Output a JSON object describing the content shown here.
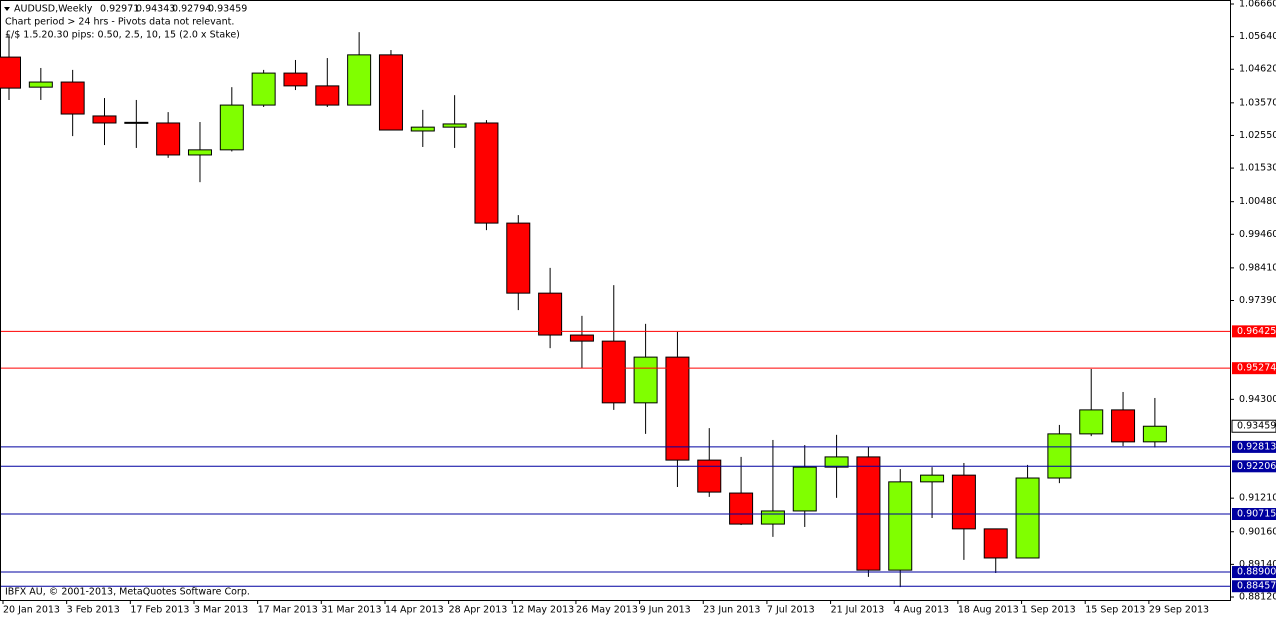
{
  "chart_data": {
    "type": "candlestick",
    "title": "AUDUSD,Weekly",
    "subtitle": [
      "Chart period > 24 hrs - Pivots data not relevant.",
      "£/$ 1.5.20.30 pips: 0.50, 2.5, 10, 15 (2.0 x Stake)"
    ],
    "footer": "IBFX AU, © 2001-2013, MetaQuotes Software Corp.",
    "categories": [
      "20 Jan 2013",
      null,
      "3 Feb 2013",
      null,
      "17 Feb 2013",
      null,
      "3 Mar 2013",
      null,
      "17 Mar 2013",
      null,
      "31 Mar 2013",
      null,
      "14 Apr 2013",
      null,
      "28 Apr 2013",
      null,
      "12 May 2013",
      null,
      "26 May 2013",
      null,
      "9 Jun 2013",
      null,
      "23 Jun 2013",
      null,
      "7 Jul 2013",
      null,
      "21 Jul 2013",
      null,
      "4 Aug 2013",
      null,
      "18 Aug 2013",
      null,
      "1 Sep 2013",
      null,
      "15 Sep 2013",
      null,
      "29 Sep 2013"
    ],
    "open": [
      1.05,
      1.0406,
      1.0422,
      1.0316,
      1.0296,
      1.0294,
      1.0194,
      1.021,
      1.035,
      1.045,
      1.041,
      1.035,
      1.0507,
      1.0269,
      1.0281,
      1.0294,
      0.9981,
      0.9762,
      0.9631,
      0.9612,
      0.9419,
      0.9562,
      0.924,
      0.9137,
      0.904,
      0.9081,
      0.9218,
      0.925,
      0.8896,
      0.9172,
      0.9193,
      0.9025,
      0.8934,
      0.9184,
      0.9322,
      0.9397,
      0.92971
    ],
    "high": [
      1.0569,
      1.0466,
      1.046,
      1.0372,
      1.0366,
      1.0328,
      1.0297,
      1.0406,
      1.046,
      1.0491,
      1.0497,
      1.0578,
      1.0522,
      1.0335,
      1.0381,
      1.0303,
      1.0006,
      0.9841,
      0.9691,
      0.9787,
      0.9666,
      0.9641,
      0.934,
      0.925,
      0.9303,
      0.9287,
      0.9319,
      0.9281,
      0.9212,
      0.9218,
      0.9231,
      0.9025,
      0.9225,
      0.935,
      0.9525,
      0.9453,
      0.94343
    ],
    "low": [
      1.0366,
      1.0366,
      1.0253,
      1.0225,
      1.0216,
      1.0185,
      1.0109,
      1.0205,
      1.0344,
      1.0397,
      1.0344,
      1.035,
      1.0272,
      1.0219,
      1.0216,
      0.9959,
      0.9709,
      0.959,
      0.9528,
      0.9397,
      0.9322,
      0.9156,
      0.9125,
      0.9037,
      0.9,
      0.9031,
      0.9122,
      0.8875,
      0.8843,
      0.9059,
      0.8928,
      0.8887,
      0.8934,
      0.9168,
      0.9315,
      0.9284,
      0.92794
    ],
    "close": [
      1.0403,
      1.0422,
      1.0322,
      1.0294,
      1.0293,
      1.0194,
      1.021,
      1.035,
      1.045,
      1.041,
      1.035,
      1.0507,
      1.0272,
      1.0281,
      1.0291,
      0.9981,
      0.9762,
      0.9631,
      0.9612,
      0.9419,
      0.9562,
      0.924,
      0.914,
      0.904,
      0.9081,
      0.9218,
      0.925,
      0.8896,
      0.9172,
      0.9193,
      0.9025,
      0.8934,
      0.9184,
      0.9322,
      0.9397,
      0.9297,
      0.93459
    ],
    "up_color": "#80ff00",
    "down_color": "#ff0000",
    "ylim": [
      0.8812,
      1.0666
    ],
    "yticks": [
      {
        "value": 1.0666,
        "label": "1.06660"
      },
      {
        "value": 1.0564,
        "label": "1.05640"
      },
      {
        "value": 1.0462,
        "label": "1.04620"
      },
      {
        "value": 1.0357,
        "label": "1.03570"
      },
      {
        "value": 1.0255,
        "label": "1.02550"
      },
      {
        "value": 1.0153,
        "label": "1.01530"
      },
      {
        "value": 1.0048,
        "label": "1.00480"
      },
      {
        "value": 0.9946,
        "label": "0.99460"
      },
      {
        "value": 0.9841,
        "label": "0.98410"
      },
      {
        "value": 0.9739,
        "label": "0.97390"
      },
      {
        "value": 0.943,
        "label": "0.94300"
      },
      {
        "value": 0.9121,
        "label": "0.91210"
      },
      {
        "value": 0.9016,
        "label": "0.90160"
      },
      {
        "value": 0.8914,
        "label": "0.89140"
      },
      {
        "value": 0.8812,
        "label": "0.88120"
      }
    ],
    "levels": [
      {
        "value": 0.96425,
        "color": "#ff0000"
      },
      {
        "value": 0.95274,
        "color": "#ff0000"
      },
      {
        "value": 0.92813,
        "color": "#0000a0"
      },
      {
        "value": 0.92206,
        "color": "#0000a0"
      },
      {
        "value": 0.90715,
        "color": "#0000a0"
      },
      {
        "value": 0.889,
        "label": "0.88900",
        "color": "#0000a0"
      },
      {
        "value": 0.88457,
        "color": "#0000a0"
      }
    ]
  }
}
